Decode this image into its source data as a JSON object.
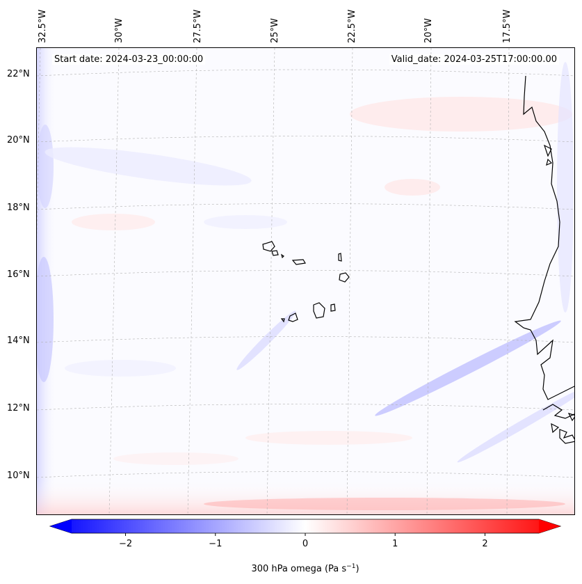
{
  "map": {
    "start_date_label": "Start date: 2024-03-23_00:00:00",
    "valid_date_label": "Valid_date: 2024-03-25T17:00:00.00",
    "lon_ticks": [
      "32.5°W",
      "30°W",
      "27.5°W",
      "25°W",
      "22.5°W",
      "20°W",
      "17.5°W"
    ],
    "lat_ticks": [
      "22°N",
      "20°N",
      "18°N",
      "16°N",
      "14°N",
      "12°N",
      "10°N"
    ],
    "projection": "lambert-conformal",
    "coastline_color": "#000000",
    "field": "300 hPa omega"
  },
  "colorbar": {
    "label": "300 hPa omega (Pa s",
    "label_sup": "−1",
    "label_close": ")",
    "ticks": [
      "−2",
      "−1",
      "0",
      "1",
      "2"
    ],
    "min": -2.6,
    "max": 2.6,
    "colormap": "bwr",
    "low_color": "#0000ff",
    "mid_color": "#ffffff",
    "high_color": "#ff0000"
  }
}
